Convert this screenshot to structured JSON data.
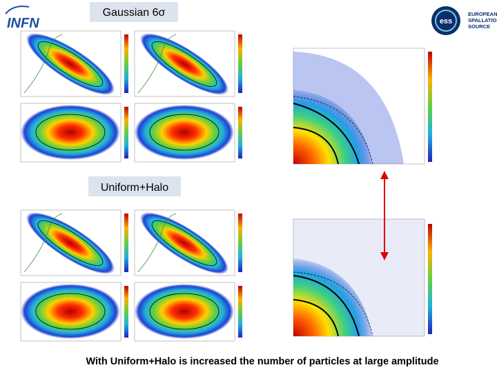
{
  "header": {
    "institute": "INFN",
    "organization": [
      "EUROPEAN",
      "SPALLATION",
      "SOURCE"
    ]
  },
  "sections": [
    {
      "label": "Gaussian 6σ"
    },
    {
      "label": "Uniform+Halo"
    }
  ],
  "caption": "With Uniform+Halo is increased the number of particles at large amplitude"
}
